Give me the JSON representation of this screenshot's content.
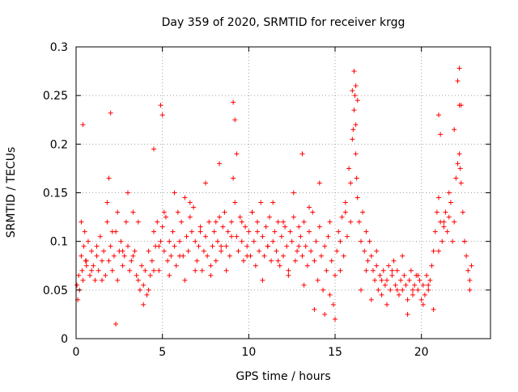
{
  "chart_data": {
    "type": "scatter",
    "title": "Day 359 of 2020, SRMTID for receiver krgg",
    "xlabel": "GPS time / hours",
    "ylabel": "SRMTID / TECUs",
    "xlim": [
      0,
      24
    ],
    "ylim": [
      0,
      0.3
    ],
    "x_ticks": [
      0,
      5,
      10,
      15,
      20
    ],
    "x_tick_labels": [
      "0",
      "5",
      "10",
      "15",
      "20"
    ],
    "y_ticks": [
      0,
      0.05,
      0.1,
      0.15,
      0.2,
      0.25,
      0.3
    ],
    "y_tick_labels": [
      "0",
      "0.05",
      "0.1",
      "0.15",
      "0.2",
      "0.25",
      "0.3"
    ],
    "grid": true,
    "marker": "+",
    "series": [
      {
        "name": "SRMTID",
        "color": "#ff0000",
        "x": [
          0.05,
          0.1,
          0.15,
          0.2,
          0.3,
          0.35,
          0.4,
          0.45,
          0.5,
          0.55,
          0.6,
          0.7,
          0.8,
          0.9,
          1.0,
          1.1,
          1.2,
          1.3,
          1.4,
          1.5,
          1.6,
          1.7,
          1.8,
          1.9,
          2.0,
          2.1,
          2.2,
          2.3,
          2.4,
          2.5,
          2.6,
          2.7,
          2.8,
          2.9,
          3.0,
          3.1,
          3.2,
          3.3,
          3.4,
          3.5,
          3.6,
          3.7,
          3.8,
          3.9,
          4.0,
          4.1,
          4.2,
          4.3,
          4.4,
          4.5,
          4.6,
          4.7,
          4.8,
          4.9,
          5.0,
          5.1,
          5.2,
          5.3,
          5.4,
          5.5,
          5.6,
          5.7,
          5.8,
          5.9,
          6.0,
          6.1,
          6.2,
          6.3,
          6.4,
          6.5,
          6.6,
          6.7,
          6.8,
          6.9,
          7.0,
          7.1,
          7.2,
          7.3,
          7.4,
          7.5,
          7.6,
          7.7,
          7.8,
          7.9,
          8.0,
          8.1,
          8.2,
          8.3,
          8.4,
          8.5,
          8.6,
          8.7,
          8.8,
          8.9,
          9.0,
          9.1,
          9.2,
          9.3,
          9.4,
          9.5,
          9.6,
          9.7,
          9.8,
          9.9,
          10.0,
          10.1,
          10.2,
          10.3,
          10.4,
          10.5,
          10.6,
          10.7,
          10.8,
          10.9,
          11.0,
          11.1,
          11.2,
          11.3,
          11.4,
          11.5,
          11.6,
          11.7,
          11.8,
          11.9,
          12.0,
          12.1,
          12.2,
          12.3,
          12.4,
          12.5,
          12.6,
          12.7,
          12.8,
          12.9,
          13.0,
          13.1,
          13.2,
          13.3,
          13.4,
          13.5,
          13.6,
          13.7,
          13.8,
          13.9,
          14.0,
          14.1,
          14.2,
          14.3,
          14.4,
          14.5,
          14.6,
          14.7,
          14.8,
          14.9,
          15.0,
          15.1,
          15.2,
          15.3,
          15.4,
          15.5,
          15.6,
          15.7,
          15.8,
          15.9,
          16.0,
          16.05,
          16.1,
          16.15,
          16.2,
          16.25,
          16.3,
          16.4,
          16.5,
          16.6,
          16.7,
          16.8,
          16.9,
          17.0,
          17.1,
          17.2,
          17.3,
          17.4,
          17.5,
          17.6,
          17.7,
          17.8,
          17.9,
          18.0,
          18.1,
          18.2,
          18.3,
          18.4,
          18.5,
          18.6,
          18.7,
          18.8,
          18.9,
          19.0,
          19.1,
          19.2,
          19.3,
          19.4,
          19.5,
          19.6,
          19.7,
          19.8,
          19.9,
          20.0,
          20.1,
          20.2,
          20.3,
          20.4,
          20.5,
          20.6,
          20.7,
          20.8,
          20.9,
          21.0,
          21.1,
          21.2,
          21.3,
          21.4,
          21.5,
          21.6,
          21.7,
          21.8,
          21.9,
          22.0,
          22.1,
          22.2,
          22.25,
          22.3,
          22.4,
          22.5,
          22.6,
          22.7,
          22.8,
          22.9,
          0.3,
          0.6,
          0.9,
          1.2,
          1.5,
          1.8,
          2.1,
          2.4,
          2.7,
          3.0,
          3.3,
          3.6,
          3.9,
          4.2,
          4.5,
          4.8,
          5.1,
          5.4,
          5.7,
          6.0,
          6.3,
          6.6,
          6.9,
          7.2,
          7.5,
          7.8,
          8.1,
          8.4,
          8.7,
          9.0,
          9.3,
          9.6,
          9.9,
          10.2,
          10.5,
          10.8,
          11.1,
          11.4,
          11.7,
          12.0,
          12.3,
          12.6,
          12.9,
          13.2,
          13.5,
          13.8,
          14.1,
          14.4,
          14.7,
          15.0,
          15.3,
          15.6,
          15.9,
          16.2,
          16.5,
          16.8,
          17.1,
          17.4,
          17.7,
          18.0,
          18.3,
          18.6,
          18.9,
          19.2,
          19.5,
          19.8,
          20.1,
          20.4,
          20.7,
          21.0,
          21.3,
          21.6,
          21.9,
          22.2,
          22.5,
          22.8,
          0.4,
          2.0,
          2.3,
          4.9,
          5.0,
          9.1,
          9.2,
          16.0,
          16.1,
          16.2,
          16.3,
          22.1,
          22.2,
          22.3,
          21.0,
          21.1,
          1.9,
          4.5,
          8.3,
          13.1
        ],
        "y": [
          0.055,
          0.04,
          0.065,
          0.05,
          0.085,
          0.07,
          0.06,
          0.095,
          0.11,
          0.08,
          0.075,
          0.1,
          0.065,
          0.09,
          0.075,
          0.06,
          0.085,
          0.07,
          0.105,
          0.08,
          0.09,
          0.065,
          0.12,
          0.08,
          0.095,
          0.07,
          0.085,
          0.11,
          0.06,
          0.09,
          0.1,
          0.075,
          0.085,
          0.12,
          0.095,
          0.07,
          0.08,
          0.13,
          0.09,
          0.065,
          0.06,
          0.05,
          0.075,
          0.055,
          0.07,
          0.045,
          0.09,
          0.065,
          0.08,
          0.11,
          0.095,
          0.12,
          0.07,
          0.1,
          0.115,
          0.09,
          0.125,
          0.08,
          0.1,
          0.085,
          0.11,
          0.095,
          0.075,
          0.13,
          0.1,
          0.12,
          0.085,
          0.145,
          0.105,
          0.09,
          0.125,
          0.11,
          0.135,
          0.1,
          0.08,
          0.095,
          0.115,
          0.07,
          0.09,
          0.105,
          0.085,
          0.12,
          0.075,
          0.095,
          0.11,
          0.08,
          0.1,
          0.125,
          0.09,
          0.115,
          0.13,
          0.095,
          0.11,
          0.085,
          0.12,
          0.165,
          0.14,
          0.105,
          0.09,
          0.125,
          0.1,
          0.08,
          0.115,
          0.095,
          0.11,
          0.085,
          0.13,
          0.1,
          0.075,
          0.12,
          0.09,
          0.14,
          0.105,
          0.085,
          0.115,
          0.095,
          0.125,
          0.08,
          0.1,
          0.11,
          0.09,
          0.12,
          0.075,
          0.105,
          0.085,
          0.115,
          0.095,
          0.07,
          0.11,
          0.1,
          0.125,
          0.08,
          0.09,
          0.115,
          0.105,
          0.085,
          0.12,
          0.095,
          0.075,
          0.11,
          0.09,
          0.13,
          0.08,
          0.1,
          0.06,
          0.115,
          0.085,
          0.05,
          0.095,
          0.07,
          0.105,
          0.045,
          0.08,
          0.035,
          0.065,
          0.09,
          0.11,
          0.1,
          0.125,
          0.085,
          0.14,
          0.105,
          0.175,
          0.12,
          0.205,
          0.215,
          0.235,
          0.25,
          0.19,
          0.165,
          0.145,
          0.12,
          0.1,
          0.13,
          0.09,
          0.11,
          0.08,
          0.1,
          0.085,
          0.07,
          0.06,
          0.075,
          0.05,
          0.065,
          0.045,
          0.07,
          0.055,
          0.06,
          0.075,
          0.05,
          0.065,
          0.08,
          0.055,
          0.07,
          0.045,
          0.06,
          0.05,
          0.065,
          0.055,
          0.04,
          0.06,
          0.07,
          0.045,
          0.055,
          0.065,
          0.05,
          0.06,
          0.04,
          0.055,
          0.045,
          0.065,
          0.05,
          0.06,
          0.075,
          0.09,
          0.11,
          0.13,
          0.145,
          0.12,
          0.1,
          0.115,
          0.13,
          0.11,
          0.125,
          0.14,
          0.1,
          0.12,
          0.165,
          0.18,
          0.19,
          0.175,
          0.16,
          0.13,
          0.1,
          0.085,
          0.07,
          0.06,
          0.075,
          0.12,
          0.08,
          0.07,
          0.095,
          0.06,
          0.14,
          0.11,
          0.13,
          0.09,
          0.15,
          0.085,
          0.12,
          0.035,
          0.05,
          0.07,
          0.095,
          0.13,
          0.065,
          0.15,
          0.085,
          0.06,
          0.14,
          0.07,
          0.11,
          0.16,
          0.065,
          0.12,
          0.095,
          0.07,
          0.105,
          0.19,
          0.12,
          0.085,
          0.13,
          0.11,
          0.06,
          0.095,
          0.14,
          0.08,
          0.12,
          0.065,
          0.15,
          0.095,
          0.055,
          0.135,
          0.03,
          0.16,
          0.025,
          0.12,
          0.02,
          0.07,
          0.13,
          0.16,
          0.22,
          0.05,
          0.07,
          0.04,
          0.09,
          0.06,
          0.035,
          0.07,
          0.05,
          0.085,
          0.025,
          0.05,
          0.065,
          0.035,
          0.055,
          0.03,
          0.09,
          0.12,
          0.15,
          0.215,
          0.24,
          0.1,
          0.05,
          0.22,
          0.232,
          0.015,
          0.24,
          0.23,
          0.243,
          0.225,
          0.255,
          0.275,
          0.26,
          0.245,
          0.265,
          0.278,
          0.24,
          0.23,
          0.21,
          0.165,
          0.195,
          0.18,
          0.19
        ]
      }
    ]
  }
}
